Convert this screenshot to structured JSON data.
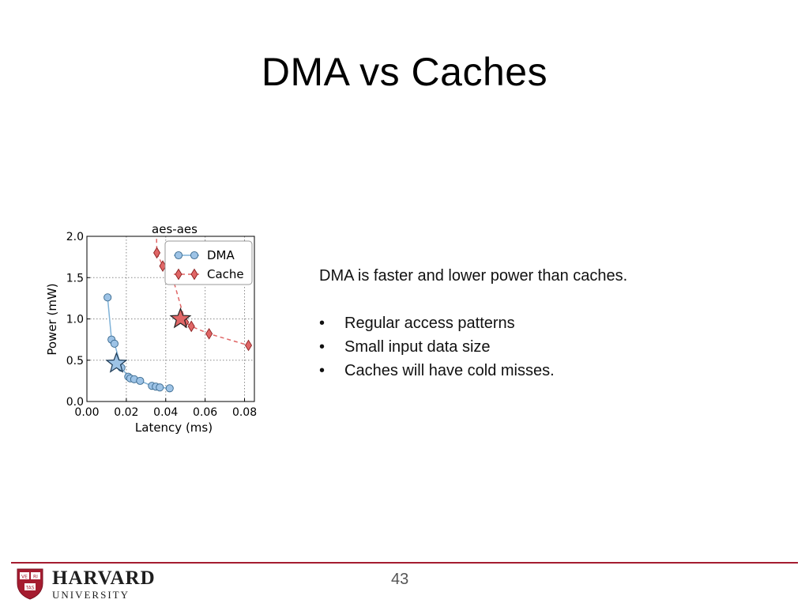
{
  "slide": {
    "title": "DMA vs Caches",
    "page_number": "43"
  },
  "text": {
    "lead": "DMA is faster and lower power than caches.",
    "bullets": [
      "Regular access patterns",
      "Small input data size",
      "Caches will have cold misses."
    ]
  },
  "footer": {
    "logo_name": "HARVARD",
    "logo_sub": "UNIVERSITY",
    "shield_text": [
      "VE",
      "RI",
      "TAS"
    ],
    "colors": {
      "crimson": "#a51c30"
    }
  },
  "chart_data": {
    "type": "scatter",
    "title": "aes-aes",
    "xlabel": "Latency (ms)",
    "ylabel": "Power (mW)",
    "xlim": [
      0,
      0.085
    ],
    "ylim": [
      0,
      2.0
    ],
    "xticks": [
      "0.00",
      "0.02",
      "0.04",
      "0.06",
      "0.08"
    ],
    "xtick_values": [
      0,
      0.02,
      0.04,
      0.06,
      0.08
    ],
    "yticks": [
      "0.0",
      "0.5",
      "1.0",
      "1.5",
      "2.0"
    ],
    "ytick_values": [
      0,
      0.5,
      1.0,
      1.5,
      2.0
    ],
    "grid": true,
    "legend_position": "top-right",
    "series": [
      {
        "name": "DMA",
        "marker": "circle",
        "color": "#9dc3e6",
        "edge": "#3a6a8f",
        "line": "solid",
        "x": [
          0.0105,
          0.0125,
          0.014,
          0.0175,
          0.021,
          0.022,
          0.024,
          0.027,
          0.033,
          0.035,
          0.037,
          0.042
        ],
        "y": [
          1.26,
          0.75,
          0.7,
          0.41,
          0.3,
          0.28,
          0.27,
          0.25,
          0.19,
          0.18,
          0.17,
          0.16
        ],
        "highlight": {
          "x": 0.015,
          "y": 0.46
        }
      },
      {
        "name": "Cache",
        "marker": "diamond",
        "color": "#e06666",
        "edge": "#8b2020",
        "line": "dashed",
        "x": [
          0.0355,
          0.0385,
          0.0435,
          0.05,
          0.053,
          0.062,
          0.082
        ],
        "y": [
          1.8,
          1.64,
          1.5,
          0.96,
          0.91,
          0.82,
          0.68
        ],
        "highlight": {
          "x": 0.0475,
          "y": 1.0
        }
      }
    ]
  }
}
